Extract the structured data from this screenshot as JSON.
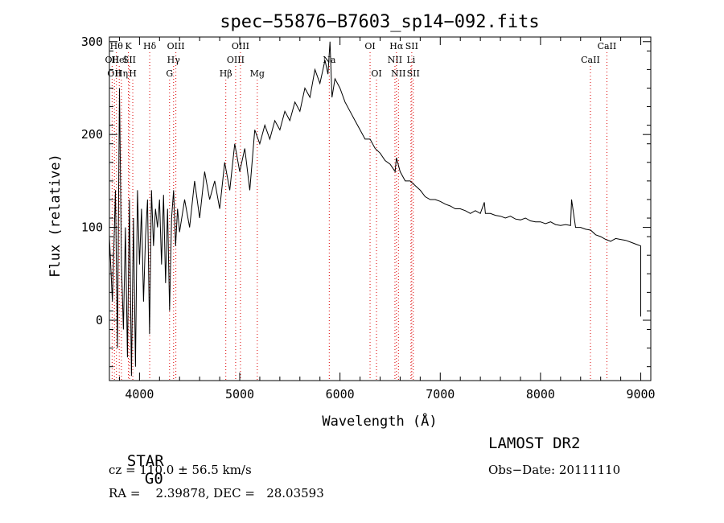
{
  "chart_data": {
    "type": "line",
    "title": "spec−55876−B7603_sp14−092.fits",
    "xlabel": "Wavelength (Å)",
    "ylabel": "Flux (relative)",
    "xlim": [
      3700,
      9100
    ],
    "ylim": [
      -65,
      305
    ],
    "x_ticks": [
      4000,
      5000,
      6000,
      7000,
      8000,
      9000
    ],
    "y_ticks": [
      0,
      100,
      200,
      300
    ],
    "grid": false,
    "series": [
      {
        "x": [
          3700,
          3730,
          3760,
          3780,
          3800,
          3820,
          3840,
          3860,
          3880,
          3900,
          3920,
          3940,
          3960,
          3980,
          4000,
          4020,
          4040,
          4060,
          4080,
          4100,
          4120,
          4140,
          4160,
          4180,
          4200,
          4220,
          4240,
          4260,
          4280,
          4300,
          4320,
          4340,
          4360,
          4380,
          4400,
          4450,
          4500,
          4550,
          4600,
          4650,
          4700,
          4750,
          4800,
          4850,
          4900,
          4950,
          5000,
          5050,
          5100,
          5150,
          5200,
          5250,
          5300,
          5350,
          5400,
          5450,
          5500,
          5550,
          5600,
          5650,
          5700,
          5750,
          5800,
          5850,
          5880,
          5900,
          5920,
          5950,
          6000,
          6050,
          6100,
          6150,
          6200,
          6250,
          6300,
          6350,
          6400,
          6450,
          6500,
          6550,
          6563,
          6600,
          6650,
          6700,
          6750,
          6800,
          6850,
          6900,
          6950,
          7000,
          7050,
          7100,
          7150,
          7200,
          7250,
          7300,
          7350,
          7400,
          7440,
          7450,
          7500,
          7550,
          7600,
          7650,
          7700,
          7750,
          7800,
          7850,
          7900,
          7950,
          8000,
          8050,
          8100,
          8150,
          8200,
          8250,
          8300,
          8310,
          8350,
          8400,
          8450,
          8500,
          8550,
          8600,
          8650,
          8700,
          8750,
          8800,
          8850,
          8900,
          8950,
          9000,
          9000
        ],
        "y": [
          90,
          20,
          140,
          -30,
          250,
          60,
          -10,
          100,
          -40,
          130,
          -60,
          110,
          -50,
          140,
          60,
          120,
          20,
          90,
          130,
          -15,
          140,
          80,
          120,
          100,
          130,
          60,
          135,
          40,
          120,
          10,
          110,
          140,
          80,
          120,
          95,
          130,
          100,
          150,
          110,
          160,
          130,
          150,
          120,
          170,
          140,
          190,
          160,
          185,
          140,
          205,
          190,
          210,
          195,
          215,
          205,
          225,
          215,
          235,
          225,
          250,
          240,
          270,
          255,
          280,
          265,
          300,
          240,
          260,
          250,
          235,
          225,
          215,
          205,
          195,
          195,
          185,
          180,
          172,
          168,
          160,
          175,
          160,
          150,
          150,
          145,
          140,
          133,
          130,
          130,
          128,
          125,
          123,
          120,
          120,
          118,
          115,
          118,
          115,
          127,
          115,
          115,
          113,
          112,
          110,
          112,
          109,
          108,
          110,
          107,
          106,
          106,
          104,
          106,
          103,
          102,
          103,
          102,
          130,
          100,
          100,
          98,
          97,
          92,
          90,
          87,
          85,
          88,
          87,
          86,
          84,
          82,
          80,
          4
        ]
      }
    ],
    "line_markers": [
      {
        "x": 3727,
        "label": "OII",
        "row": 1
      },
      {
        "x": 3750,
        "label": "OII",
        "row": 2
      },
      {
        "x": 3770,
        "label": "Hθ",
        "row": 0
      },
      {
        "x": 3798,
        "label": "Hel",
        "row": 1
      },
      {
        "x": 3820,
        "label": "Hη",
        "row": 2
      },
      {
        "x": 3889,
        "label": "K",
        "row": 0
      },
      {
        "x": 3900,
        "label": "SII",
        "row": 1
      },
      {
        "x": 3933,
        "label": "H",
        "row": 2
      },
      {
        "x": 4102,
        "label": "Hδ",
        "row": 0
      },
      {
        "x": 4300,
        "label": "G",
        "row": 2
      },
      {
        "x": 4340,
        "label": "Hγ",
        "row": 1
      },
      {
        "x": 4363,
        "label": "OIII",
        "row": 0
      },
      {
        "x": 4861,
        "label": "Hβ",
        "row": 2
      },
      {
        "x": 4959,
        "label": "OIII",
        "row": 1
      },
      {
        "x": 5007,
        "label": "OIII",
        "row": 0
      },
      {
        "x": 5175,
        "label": "Mg",
        "row": 2
      },
      {
        "x": 5893,
        "label": "Na",
        "row": 1
      },
      {
        "x": 6300,
        "label": "OI",
        "row": 0
      },
      {
        "x": 6364,
        "label": "OI",
        "row": 2
      },
      {
        "x": 6548,
        "label": "NII",
        "row": 1
      },
      {
        "x": 6563,
        "label": "Hα",
        "row": 0
      },
      {
        "x": 6583,
        "label": "NII",
        "row": 2
      },
      {
        "x": 6708,
        "label": "Li",
        "row": 1
      },
      {
        "x": 6716,
        "label": "SII",
        "row": 0
      },
      {
        "x": 6731,
        "label": "SII",
        "row": 2
      },
      {
        "x": 8498,
        "label": "CaII",
        "row": 1
      },
      {
        "x": 8662,
        "label": "CaII",
        "row": 0
      }
    ]
  },
  "info": {
    "class_label": "STAR",
    "subclass": "G0",
    "survey": "LAMOST DR2",
    "cz": "cz = 110.0 ± 56.5 km/s",
    "obs_date": "Obs−Date: 20111110",
    "coords": "RA =    2.39878, DEC =   28.03593"
  }
}
